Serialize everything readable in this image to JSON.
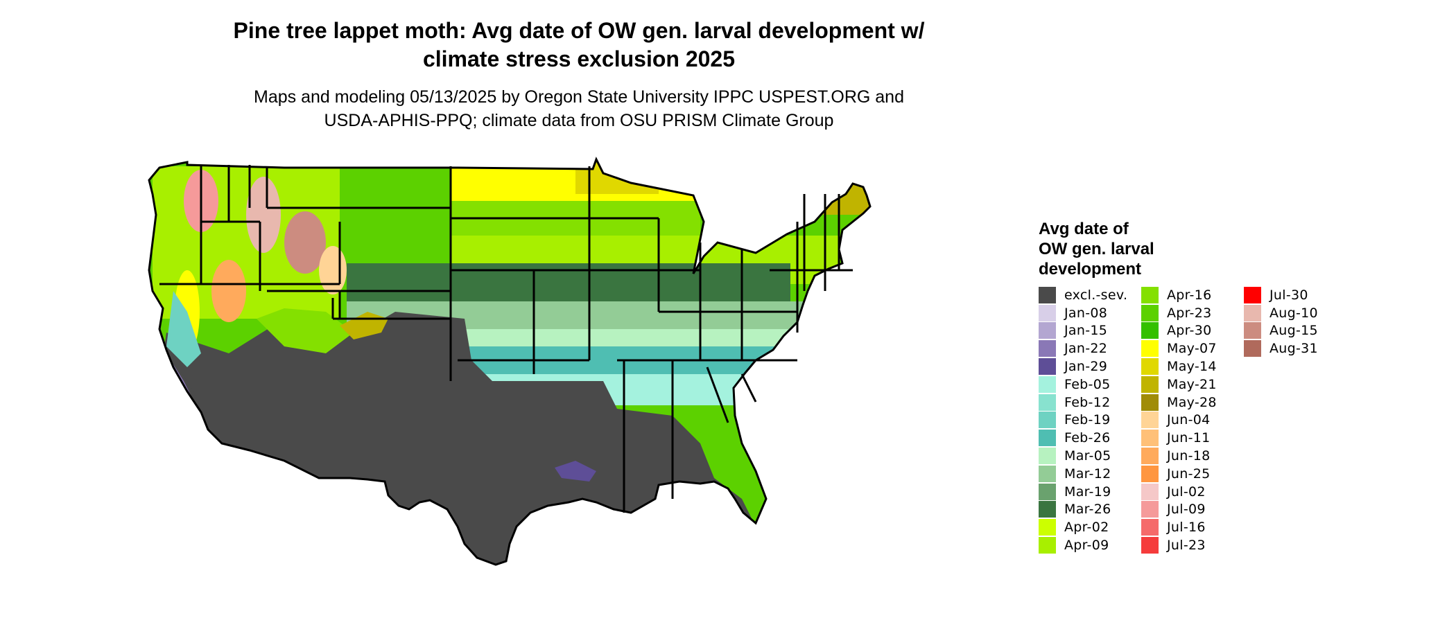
{
  "title_lines": [
    "Pine tree lappet moth: Avg date of OW gen. larval development w/",
    "climate stress exclusion 2025"
  ],
  "subtitle_lines": [
    "Maps and modeling 05/13/2025 by Oregon State University IPPC USPEST.ORG and",
    "USDA-APHIS-PPQ; climate data from OSU PRISM Climate Group"
  ],
  "legend": {
    "title_lines": [
      "Avg date of",
      "OW gen. larval",
      "development"
    ],
    "items": [
      {
        "label": "excl.-sev.",
        "color": "#4a4a4a"
      },
      {
        "label": "Jan-08",
        "color": "#d8cfe8"
      },
      {
        "label": "Jan-15",
        "color": "#b3a6d1"
      },
      {
        "label": "Jan-22",
        "color": "#8a78b6"
      },
      {
        "label": "Jan-29",
        "color": "#5e4e97"
      },
      {
        "label": "Feb-05",
        "color": "#a4f2de"
      },
      {
        "label": "Feb-12",
        "color": "#88e2cf"
      },
      {
        "label": "Feb-19",
        "color": "#6ed2c2"
      },
      {
        "label": "Feb-26",
        "color": "#4fbeb2"
      },
      {
        "label": "Mar-05",
        "color": "#b7f2c0"
      },
      {
        "label": "Mar-12",
        "color": "#93cc96"
      },
      {
        "label": "Mar-19",
        "color": "#6aa26e"
      },
      {
        "label": "Mar-26",
        "color": "#3a7540"
      },
      {
        "label": "Apr-02",
        "color": "#ccff00"
      },
      {
        "label": "Apr-09",
        "color": "#a8ef00"
      },
      {
        "label": "Apr-16",
        "color": "#84e000"
      },
      {
        "label": "Apr-23",
        "color": "#5cd100"
      },
      {
        "label": "Apr-30",
        "color": "#33c000"
      },
      {
        "label": "May-07",
        "color": "#ffff00"
      },
      {
        "label": "May-14",
        "color": "#e0d800"
      },
      {
        "label": "May-21",
        "color": "#c0b400"
      },
      {
        "label": "May-28",
        "color": "#a08c08"
      },
      {
        "label": "Jun-04",
        "color": "#ffd496"
      },
      {
        "label": "Jun-11",
        "color": "#ffc078"
      },
      {
        "label": "Jun-18",
        "color": "#ffaa5c"
      },
      {
        "label": "Jun-25",
        "color": "#ff9640"
      },
      {
        "label": "Jul-02",
        "color": "#f5c8c8"
      },
      {
        "label": "Jul-09",
        "color": "#f59a9a"
      },
      {
        "label": "Jul-16",
        "color": "#f56a6a"
      },
      {
        "label": "Jul-23",
        "color": "#f53c3c"
      },
      {
        "label": "Jul-30",
        "color": "#ff0000"
      },
      {
        "label": "Aug-10",
        "color": "#e8b8ae"
      },
      {
        "label": "Aug-15",
        "color": "#cc8c80"
      },
      {
        "label": "Aug-31",
        "color": "#b06a5c"
      }
    ]
  }
}
